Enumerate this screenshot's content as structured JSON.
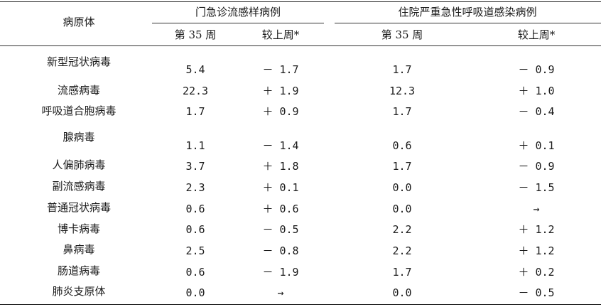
{
  "header": {
    "pathogen_label": "病原体",
    "outpatient_group": "门急诊流感样病例",
    "inpatient_group": "住院严重急性呼吸道感染病例",
    "week_label": "第 35 周",
    "change_label": "较上周*"
  },
  "rows": [
    {
      "name": "新型冠状病毒",
      "op_week": "5.4",
      "op_change": "－ 1.7",
      "ip_week": "1.7",
      "ip_change": "－ 0.9"
    },
    {
      "name": "流感病毒",
      "op_week": "22.3",
      "op_change": "＋ 1.9",
      "ip_week": "12.3",
      "ip_change": "＋ 1.0"
    },
    {
      "name": "呼吸道合胞病毒",
      "op_week": "1.7",
      "op_change": "＋ 0.9",
      "ip_week": "1.7",
      "ip_change": "－ 0.4"
    },
    {
      "name": "腺病毒",
      "op_week": "1.1",
      "op_change": "－ 1.4",
      "ip_week": "0.6",
      "ip_change": "＋ 0.1"
    },
    {
      "name": "人偏肺病毒",
      "op_week": "3.7",
      "op_change": "＋ 1.8",
      "ip_week": "1.7",
      "ip_change": "－ 0.9"
    },
    {
      "name": "副流感病毒",
      "op_week": "2.3",
      "op_change": "＋ 0.1",
      "ip_week": "0.0",
      "ip_change": "－ 1.5"
    },
    {
      "name": "普通冠状病毒",
      "op_week": "0.6",
      "op_change": "＋ 0.6",
      "ip_week": "0.0",
      "ip_change": "→"
    },
    {
      "name": "博卡病毒",
      "op_week": "0.6",
      "op_change": "－ 0.5",
      "ip_week": "2.2",
      "ip_change": "＋ 1.2"
    },
    {
      "name": "鼻病毒",
      "op_week": "2.5",
      "op_change": "－ 0.8",
      "ip_week": "2.2",
      "ip_change": "＋ 1.2"
    },
    {
      "name": "肠道病毒",
      "op_week": "0.6",
      "op_change": "－ 1.9",
      "ip_week": "1.7",
      "ip_change": "＋ 0.2"
    },
    {
      "name": "肺炎支原体",
      "op_week": "0.0",
      "op_change": "→",
      "ip_week": "0.0",
      "ip_change": "－ 0.5"
    }
  ]
}
